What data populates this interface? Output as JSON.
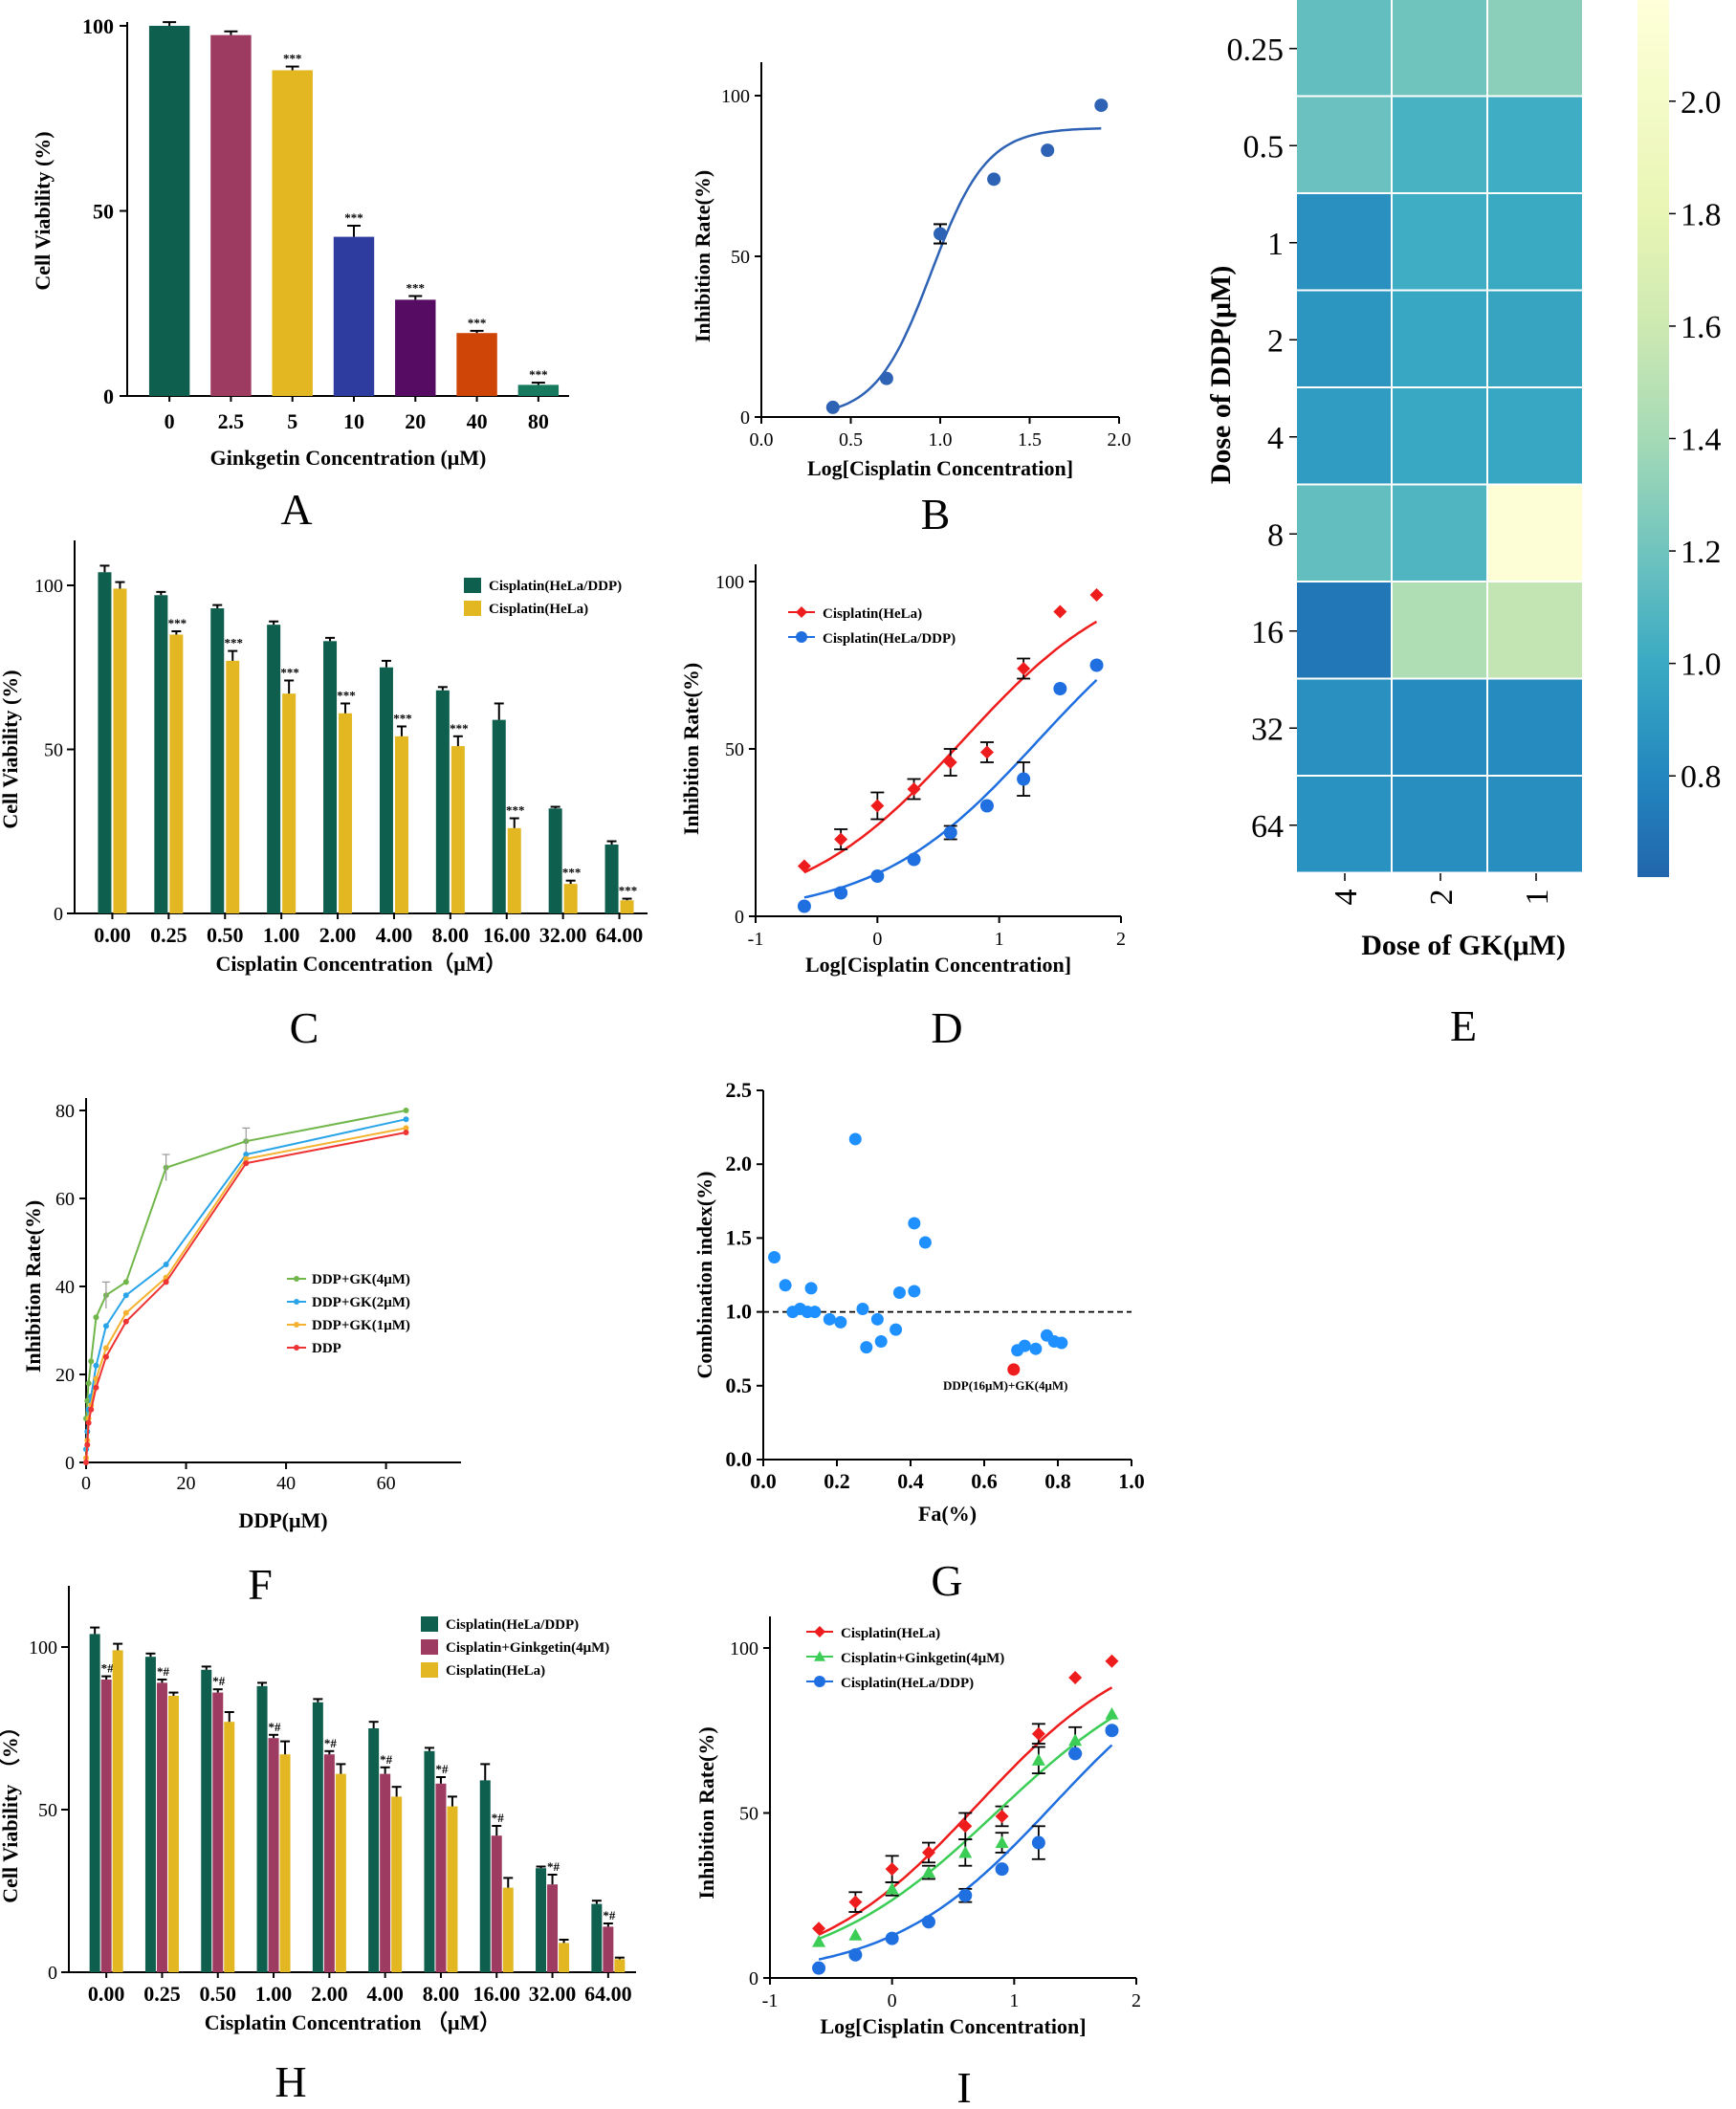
{
  "colors": {
    "green": "#0e5f4d",
    "maroon": "#9e3b61",
    "yellow": "#e2b722",
    "blue": "#2f3c9f",
    "purple": "#560c63",
    "orange": "#cf4508",
    "teal": "#177a5e",
    "red": "#ee1c1c",
    "dotblue": "#1f6fe0",
    "tri": "#3ccd57",
    "curveblue": "#2e62b5",
    "ci": "#1e90ff",
    "gk4": "#70b64a",
    "gk2": "#2aa4e8",
    "gk1": "#f5b230",
    "ddp": "#ee3333"
  },
  "chart_data": [
    {
      "panel": "A",
      "type": "bar",
      "categories": [
        "0",
        "2.5",
        "5",
        "10",
        "20",
        "40",
        "80"
      ],
      "values": [
        100,
        97.5,
        88,
        43,
        26,
        17,
        3
      ],
      "errors": [
        1,
        1,
        1,
        3,
        1,
        0.6,
        0.6
      ],
      "stars": [
        "",
        "",
        "***",
        "***",
        "***",
        "***",
        "***"
      ],
      "colors": [
        "#0e5f4d",
        "#9e3b61",
        "#e2b722",
        "#2f3c9f",
        "#560c63",
        "#cf4508",
        "#177a5e"
      ],
      "xlabel": "Ginkgetin Concentration (μM)",
      "ylabel": "Cell Viability (%)",
      "ylim": [
        0,
        100
      ],
      "yticks": [
        "0",
        "50",
        "100"
      ]
    },
    {
      "panel": "B",
      "type": "scatter",
      "points": [
        [
          0.4,
          3
        ],
        [
          0.7,
          12
        ],
        [
          1.0,
          57
        ],
        [
          1.3,
          74
        ],
        [
          1.6,
          83
        ],
        [
          1.9,
          97
        ]
      ],
      "errors": [
        0,
        0,
        3,
        0,
        0,
        0
      ],
      "curve": {
        "bottom": 0,
        "top": 90,
        "logic50": 0.95,
        "hill": 2.8
      },
      "xlabel": "Log[Cisplatin Concentration]",
      "ylabel": "Inhibition Rate(%)",
      "xlim": [
        0,
        2
      ],
      "ylim": [
        0,
        100
      ],
      "xticks": [
        "0.0",
        "0.5",
        "1.0",
        "1.5",
        "2.0"
      ],
      "yticks": [
        "0",
        "50",
        "100"
      ]
    },
    {
      "panel": "C",
      "type": "bar",
      "categories": [
        "0.00",
        "0.25",
        "0.50",
        "1.00",
        "2.00",
        "4.00",
        "8.00",
        "16.00",
        "32.00",
        "64.00"
      ],
      "series": [
        {
          "name": "Cisplatin(HeLa/DDP)",
          "color": "#0e5f4d",
          "values": [
            104,
            97,
            93,
            88,
            83,
            75,
            68,
            59,
            32,
            21
          ],
          "errors": [
            2,
            1,
            1,
            1,
            1,
            2,
            1,
            5,
            0.5,
            1
          ]
        },
        {
          "name": "Cisplatin(HeLa)",
          "color": "#e2b722",
          "values": [
            99,
            85,
            77,
            67,
            61,
            54,
            51,
            26,
            9,
            4
          ],
          "errors": [
            2,
            1,
            3,
            4,
            3,
            3,
            3,
            3,
            1,
            0.5
          ]
        }
      ],
      "stars": [
        "",
        "***",
        "***",
        "***",
        "***",
        "***",
        "***",
        "***",
        "***",
        "***"
      ],
      "xlabel": "Cisplatin Concentration（μM）",
      "ylabel": "Cell Viability (%)",
      "ylim": [
        0,
        120
      ],
      "yticks": [
        "0",
        "50",
        "100"
      ]
    },
    {
      "panel": "D",
      "type": "scatter",
      "series": [
        {
          "name": "Cisplatin(HeLa)",
          "marker": "diamond",
          "color": "#ee1c1c",
          "points": [
            [
              -0.6,
              15
            ],
            [
              -0.3,
              23
            ],
            [
              0,
              33
            ],
            [
              0.3,
              38
            ],
            [
              0.6,
              46
            ],
            [
              0.9,
              49
            ],
            [
              1.2,
              74
            ],
            [
              1.5,
              91
            ],
            [
              1.8,
              96
            ]
          ],
          "errors": [
            0,
            3,
            4,
            3,
            4,
            3,
            3,
            0,
            0
          ],
          "curve": {
            "bottom": 0,
            "top": 105,
            "logic50": 0.7,
            "hill": 0.65
          }
        },
        {
          "name": "Cisplatin(HeLa/DDP)",
          "marker": "circle",
          "color": "#1f6fe0",
          "points": [
            [
              -0.6,
              3
            ],
            [
              -0.3,
              7
            ],
            [
              0,
              12
            ],
            [
              0.3,
              17
            ],
            [
              0.6,
              25
            ],
            [
              0.9,
              33
            ],
            [
              1.2,
              41
            ],
            [
              1.5,
              68
            ],
            [
              1.8,
              75
            ]
          ],
          "errors": [
            0,
            0,
            0,
            0,
            2,
            0,
            5,
            0,
            0
          ],
          "curve": {
            "bottom": 0,
            "top": 105,
            "logic50": 1.32,
            "hill": 0.65
          }
        }
      ],
      "xlabel": "Log[Cisplatin Concentration]",
      "ylabel": "Inhibition Rate(%)",
      "xlim": [
        -1,
        2
      ],
      "ylim": [
        0,
        100
      ],
      "xticks": [
        "-1",
        "0",
        "1",
        "2"
      ],
      "yticks": [
        "0",
        "50",
        "100"
      ]
    },
    {
      "panel": "E",
      "type": "heatmap",
      "rows": [
        "0.25",
        "0.5",
        "1",
        "2",
        "4",
        "8",
        "16",
        "32",
        "64"
      ],
      "cols": [
        "4",
        "2",
        "1"
      ],
      "values": [
        [
          1.15,
          1.2,
          1.3
        ],
        [
          1.18,
          1.05,
          1.02
        ],
        [
          0.85,
          1.02,
          1.0
        ],
        [
          0.88,
          0.98,
          0.97
        ],
        [
          0.92,
          0.99,
          0.98
        ],
        [
          1.15,
          1.08,
          2.15
        ],
        [
          0.72,
          1.45,
          1.55
        ],
        [
          0.85,
          0.83,
          0.83
        ],
        [
          0.86,
          0.84,
          0.84
        ]
      ],
      "vmin": 0.62,
      "vmax": 2.18,
      "colorbar_ticks": [
        "0.8",
        "1.0",
        "1.2",
        "1.4",
        "1.6",
        "1.8",
        "2.0"
      ],
      "xlabel": "Dose of GK(μM)",
      "ylabel": "Dose of DDP(μM)"
    },
    {
      "panel": "F",
      "type": "line",
      "x": [
        0,
        0.25,
        0.5,
        1,
        2,
        4,
        8,
        16,
        32,
        64
      ],
      "series": [
        {
          "name": "DDP+GK(4μM)",
          "color": "#70b64a",
          "values": [
            10,
            14,
            18,
            23,
            33,
            38,
            41,
            67,
            73,
            80
          ]
        },
        {
          "name": "DDP+GK(2μM)",
          "color": "#2aa4e8",
          "values": [
            3,
            7,
            12,
            15,
            22,
            31,
            38,
            45,
            70,
            78
          ]
        },
        {
          "name": "DDP+GK(1μM)",
          "color": "#f5b230",
          "values": [
            1,
            5,
            10,
            13,
            19,
            26,
            34,
            42,
            69,
            76
          ]
        },
        {
          "name": "DDP",
          "color": "#ee3333",
          "values": [
            0,
            4,
            9,
            12,
            17,
            24,
            32,
            41,
            68,
            75
          ]
        }
      ],
      "xlabel": "DDP(μM)",
      "ylabel": "Inhibition Rate(%)",
      "xlim": [
        0,
        75
      ],
      "ylim": [
        0,
        82
      ],
      "xticks": [
        "0",
        "20",
        "40",
        "60"
      ],
      "yticks": [
        "0",
        "20",
        "40",
        "60",
        "80"
      ]
    },
    {
      "panel": "G",
      "type": "scatter",
      "points": [
        [
          0.03,
          1.37
        ],
        [
          0.06,
          1.18
        ],
        [
          0.08,
          1.0
        ],
        [
          0.1,
          1.02
        ],
        [
          0.12,
          1.0
        ],
        [
          0.13,
          1.16
        ],
        [
          0.14,
          1.0
        ],
        [
          0.18,
          0.95
        ],
        [
          0.21,
          0.93
        ],
        [
          0.25,
          2.17
        ],
        [
          0.27,
          1.02
        ],
        [
          0.28,
          0.76
        ],
        [
          0.31,
          0.95
        ],
        [
          0.32,
          0.8
        ],
        [
          0.36,
          0.88
        ],
        [
          0.37,
          1.13
        ],
        [
          0.41,
          1.14
        ],
        [
          0.41,
          1.6
        ],
        [
          0.44,
          1.47
        ],
        [
          0.69,
          0.74
        ],
        [
          0.71,
          0.77
        ],
        [
          0.74,
          0.75
        ],
        [
          0.77,
          0.84
        ],
        [
          0.79,
          0.8
        ],
        [
          0.81,
          0.79
        ]
      ],
      "highlight": {
        "point": [
          0.68,
          0.61
        ],
        "label": "DDP(16μM)+GK(4μM)"
      },
      "reference_line": 1.0,
      "xlabel": "Fa(%)",
      "ylabel": "Combination index(%)",
      "xlim": [
        0,
        1
      ],
      "ylim": [
        0,
        2.5
      ],
      "xticks": [
        "0.0",
        "0.2",
        "0.4",
        "0.6",
        "0.8",
        "1.0"
      ],
      "yticks": [
        "0.0",
        "0.5",
        "1.0",
        "1.5",
        "2.0",
        "2.5"
      ]
    },
    {
      "panel": "H",
      "type": "bar",
      "categories": [
        "0.00",
        "0.25",
        "0.50",
        "1.00",
        "2.00",
        "4.00",
        "8.00",
        "16.00",
        "32.00",
        "64.00"
      ],
      "series": [
        {
          "name": "Cisplatin(HeLa/DDP)",
          "color": "#0e5f4d",
          "values": [
            104,
            97,
            93,
            88,
            83,
            75,
            68,
            59,
            32,
            21
          ],
          "errors": [
            2,
            1,
            1,
            1,
            1,
            2,
            1,
            5,
            0.5,
            1
          ]
        },
        {
          "name": "Cisplatin+Ginkgetin(4μM)",
          "color": "#9e3b61",
          "values": [
            90,
            89,
            86,
            72,
            67,
            61,
            58,
            42,
            27,
            14
          ],
          "errors": [
            1,
            1,
            1,
            1,
            1,
            2,
            2,
            3,
            3,
            1
          ]
        },
        {
          "name": "Cisplatin(HeLa)",
          "color": "#e2b722",
          "values": [
            99,
            85,
            77,
            67,
            61,
            54,
            51,
            26,
            9,
            4
          ],
          "errors": [
            2,
            1,
            3,
            4,
            3,
            3,
            3,
            3,
            1,
            0.5
          ]
        }
      ],
      "marks": [
        "*#",
        "*#",
        "*#",
        "*#",
        "*#",
        "*#",
        "*#",
        "*#",
        "*#",
        "*#"
      ],
      "xlabel": "Cisplatin Concentration （μM）",
      "ylabel": "Cell Viability （%）",
      "ylim": [
        0,
        120
      ],
      "yticks": [
        "0",
        "50",
        "100"
      ]
    },
    {
      "panel": "I",
      "type": "scatter",
      "series": [
        {
          "name": "Cisplatin(HeLa)",
          "marker": "diamond",
          "color": "#ee1c1c",
          "points": [
            [
              -0.6,
              15
            ],
            [
              -0.3,
              23
            ],
            [
              0,
              33
            ],
            [
              0.3,
              38
            ],
            [
              0.6,
              46
            ],
            [
              0.9,
              49
            ],
            [
              1.2,
              74
            ],
            [
              1.5,
              91
            ],
            [
              1.8,
              96
            ]
          ],
          "errors": [
            0,
            3,
            4,
            3,
            4,
            3,
            3,
            0,
            0
          ],
          "curve": {
            "bottom": 0,
            "top": 105,
            "logic50": 0.7,
            "hill": 0.65
          }
        },
        {
          "name": "Cisplatin+Ginkgetin(4μM)",
          "marker": "triangle",
          "color": "#3ccd57",
          "points": [
            [
              -0.6,
              11
            ],
            [
              -0.3,
              13
            ],
            [
              0,
              27
            ],
            [
              0.3,
              32
            ],
            [
              0.6,
              38
            ],
            [
              0.9,
              41
            ],
            [
              1.2,
              66
            ],
            [
              1.5,
              72
            ],
            [
              1.8,
              80
            ]
          ],
          "errors": [
            0,
            0,
            2,
            2,
            4,
            3,
            4,
            4,
            0
          ],
          "curve": {
            "bottom": 0,
            "top": 100,
            "logic50": 0.85,
            "hill": 0.6
          }
        },
        {
          "name": "Cisplatin(HeLa/DDP)",
          "marker": "circle",
          "color": "#1f6fe0",
          "points": [
            [
              -0.6,
              3
            ],
            [
              -0.3,
              7
            ],
            [
              0,
              12
            ],
            [
              0.3,
              17
            ],
            [
              0.6,
              25
            ],
            [
              0.9,
              33
            ],
            [
              1.2,
              41
            ],
            [
              1.5,
              68
            ],
            [
              1.8,
              75
            ]
          ],
          "errors": [
            0,
            0,
            0,
            0,
            2,
            0,
            5,
            0,
            0
          ],
          "curve": {
            "bottom": 0,
            "top": 105,
            "logic50": 1.32,
            "hill": 0.65
          }
        }
      ],
      "xlabel": "Log[Cisplatin Concentration]",
      "ylabel": "Inhibition Rate(%)",
      "xlim": [
        -1,
        2
      ],
      "ylim": [
        0,
        100
      ],
      "xticks": [
        "-1",
        "0",
        "1",
        "2"
      ],
      "yticks": [
        "0",
        "50",
        "100"
      ]
    }
  ],
  "panel_labels": [
    "A",
    "B",
    "C",
    "D",
    "E",
    "F",
    "G",
    "H",
    "I"
  ]
}
